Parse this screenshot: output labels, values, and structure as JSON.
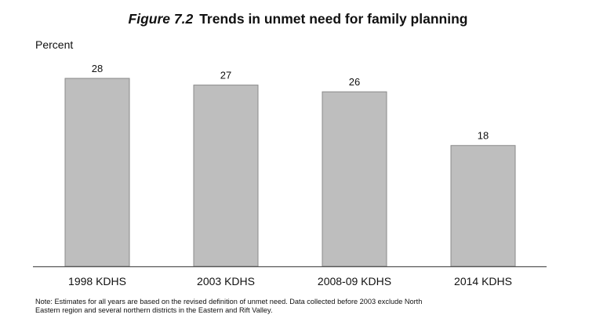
{
  "header": {
    "figure_label": "Figure 7.2",
    "title": "Trends in unmet need for family planning"
  },
  "note": "Note: Estimates for all years are based on the revised definition of unmet need. Data collected before 2003 exclude North Eastern region and several northern districts in the Eastern and Rift Valley.",
  "chart_data": {
    "type": "bar",
    "title": "Trends in unmet need for family planning",
    "ylabel": "Percent",
    "xlabel": "",
    "categories": [
      "1998 KDHS",
      "2003 KDHS",
      "2008-09 KDHS",
      "2014 KDHS"
    ],
    "values": [
      28,
      27,
      26,
      18
    ],
    "ylim": [
      0,
      30
    ],
    "grid": false,
    "legend": "none",
    "colors": {
      "bar_fill": "#bebebe",
      "bar_stroke": "#8a8a8a",
      "axis": "#555555"
    }
  }
}
